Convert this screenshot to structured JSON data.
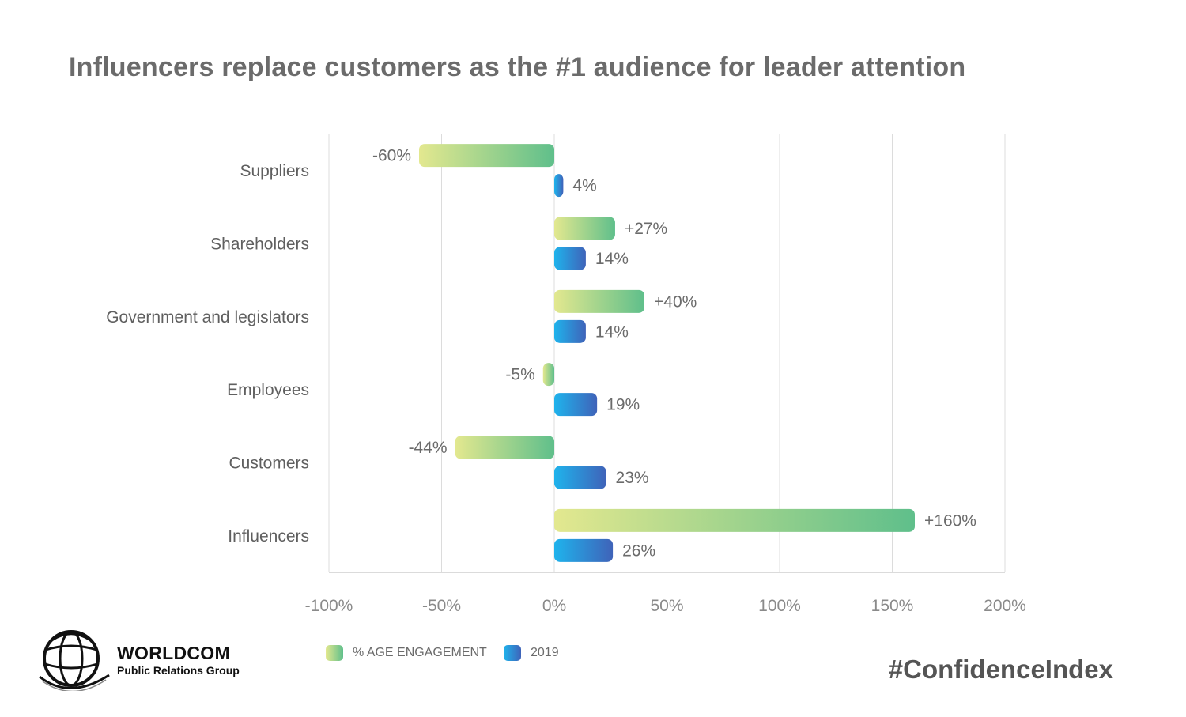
{
  "title": "Influencers replace customers as the #1 audience for leader attention",
  "chart_data": {
    "type": "bar",
    "orientation": "horizontal",
    "categories": [
      "Suppliers",
      "Shareholders",
      "Government and legislators",
      "Employees",
      "Customers",
      "Influencers"
    ],
    "series": [
      {
        "name": "% AGE ENGAGEMENT",
        "values": [
          -60,
          27,
          40,
          -5,
          -44,
          160
        ],
        "labels": [
          "-60%",
          "+27%",
          "+40%",
          "-5%",
          "-44%",
          "+160%"
        ],
        "color_start": "#e3e88f",
        "color_end": "#5fbf8b"
      },
      {
        "name": "2019",
        "values": [
          4,
          14,
          14,
          19,
          23,
          26
        ],
        "labels": [
          "4%",
          "14%",
          "14%",
          "19%",
          "23%",
          "26%"
        ],
        "color_start": "#1fb3ec",
        "color_end": "#3f63b9"
      }
    ],
    "xlim": [
      -100,
      200
    ],
    "xticks": [
      -100,
      -50,
      0,
      50,
      100,
      150,
      200
    ],
    "xtick_labels": [
      "-100%",
      "-50%",
      "0%",
      "50%",
      "100%",
      "150%",
      "200%"
    ],
    "grid": "vertical",
    "legend_position": "bottom"
  },
  "brand": {
    "name": "WORLDCOM",
    "subtitle": "Public Relations Group",
    "logo_icon": "globe-logo-icon"
  },
  "hashtag": "#ConfidenceIndex"
}
